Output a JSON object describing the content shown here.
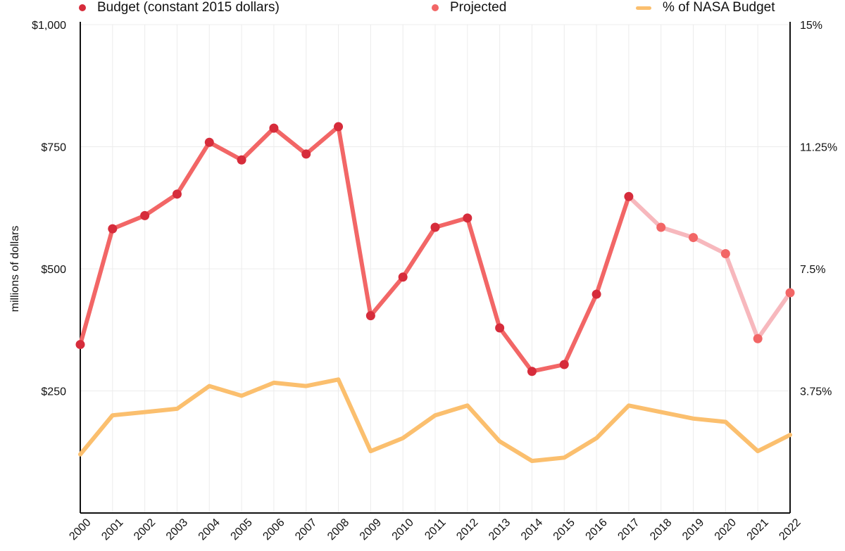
{
  "chart_data": {
    "type": "line",
    "ylabel": "millions of dollars",
    "x": [
      "2000",
      "2001",
      "2002",
      "2003",
      "2004",
      "2005",
      "2006",
      "2007",
      "2008",
      "2009",
      "2010",
      "2011",
      "2012",
      "2013",
      "2014",
      "2015",
      "2016",
      "2017",
      "2018",
      "2019",
      "2020",
      "2021",
      "2022"
    ],
    "ylim": [
      0,
      1000
    ],
    "yticks": [
      "$250",
      "$500",
      "$750",
      "$1,000"
    ],
    "ylim_right": [
      0,
      15
    ],
    "yticks_right": [
      "3.75%",
      "7.5%",
      "11.25%",
      "15%"
    ],
    "grid": true,
    "legend_position": "top",
    "series": [
      {
        "name": "Budget (constant 2015 dollars)",
        "axis": "left",
        "color": "#f26666",
        "marker_color": "#d62c3b",
        "x": [
          "2000",
          "2001",
          "2002",
          "2003",
          "2004",
          "2005",
          "2006",
          "2007",
          "2008",
          "2009",
          "2010",
          "2011",
          "2012",
          "2013",
          "2014",
          "2015",
          "2016",
          "2017"
        ],
        "values": [
          345,
          582,
          609,
          653,
          759,
          723,
          788,
          735,
          791,
          404,
          483,
          585,
          604,
          379,
          290,
          304,
          448,
          648
        ]
      },
      {
        "name": "Projected",
        "axis": "left",
        "color": "#f7b8bd",
        "marker_color": "#f26666",
        "x": [
          "2017",
          "2018",
          "2019",
          "2020",
          "2021",
          "2022"
        ],
        "values": [
          648,
          585,
          564,
          531,
          357,
          451
        ]
      },
      {
        "name": "% of NASA Budget",
        "axis": "right",
        "color": "#fbbf6e",
        "x": [
          "2000",
          "2001",
          "2002",
          "2003",
          "2004",
          "2005",
          "2006",
          "2007",
          "2008",
          "2009",
          "2010",
          "2011",
          "2012",
          "2013",
          "2014",
          "2015",
          "2016",
          "2017",
          "2018",
          "2019",
          "2020",
          "2021",
          "2022"
        ],
        "values": [
          1.8,
          3.0,
          3.1,
          3.2,
          3.9,
          3.6,
          4.0,
          3.9,
          4.1,
          1.9,
          2.3,
          3.0,
          3.3,
          2.2,
          1.6,
          1.7,
          2.3,
          3.3,
          3.1,
          2.9,
          2.8,
          1.9,
          2.4
        ]
      }
    ]
  }
}
